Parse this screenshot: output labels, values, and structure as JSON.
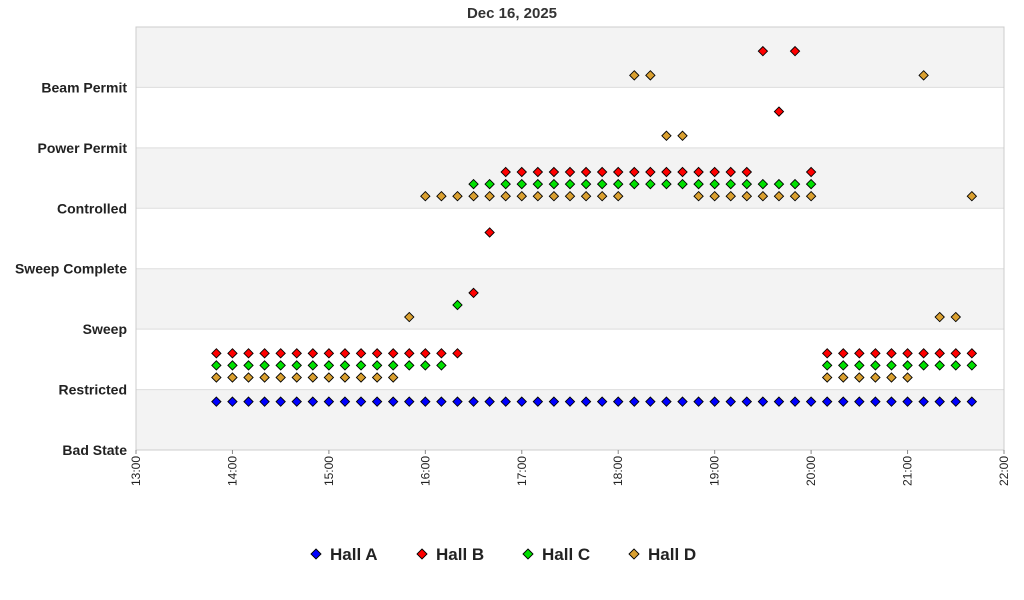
{
  "chart_data": {
    "type": "scatter",
    "title": "Dec 16, 2025",
    "xlabel": "",
    "ylabel": "",
    "x_ticks": [
      "13:00",
      "14:00",
      "15:00",
      "16:00",
      "17:00",
      "18:00",
      "19:00",
      "20:00",
      "21:00",
      "22:00"
    ],
    "xlim": [
      "13:00",
      "22:00"
    ],
    "y_categories": [
      "Bad State",
      "Restricted",
      "Sweep",
      "Sweep Complete",
      "Controlled",
      "Power Permit",
      "Beam Permit"
    ],
    "grid": true,
    "legend_position": "bottom",
    "series": [
      {
        "name": "Hall A",
        "color": "#0000ff",
        "points": [
          [
            "13:50",
            0.8
          ],
          [
            "14:00",
            0.8
          ],
          [
            "14:10",
            0.8
          ],
          [
            "14:20",
            0.8
          ],
          [
            "14:30",
            0.8
          ],
          [
            "14:40",
            0.8
          ],
          [
            "14:50",
            0.8
          ],
          [
            "15:00",
            0.8
          ],
          [
            "15:10",
            0.8
          ],
          [
            "15:20",
            0.8
          ],
          [
            "15:30",
            0.8
          ],
          [
            "15:40",
            0.8
          ],
          [
            "15:50",
            0.8
          ],
          [
            "16:00",
            0.8
          ],
          [
            "16:10",
            0.8
          ],
          [
            "16:20",
            0.8
          ],
          [
            "16:30",
            0.8
          ],
          [
            "16:40",
            0.8
          ],
          [
            "16:50",
            0.8
          ],
          [
            "17:00",
            0.8
          ],
          [
            "17:10",
            0.8
          ],
          [
            "17:20",
            0.8
          ],
          [
            "17:30",
            0.8
          ],
          [
            "17:40",
            0.8
          ],
          [
            "17:50",
            0.8
          ],
          [
            "18:00",
            0.8
          ],
          [
            "18:10",
            0.8
          ],
          [
            "18:20",
            0.8
          ],
          [
            "18:30",
            0.8
          ],
          [
            "18:40",
            0.8
          ],
          [
            "18:50",
            0.8
          ],
          [
            "19:00",
            0.8
          ],
          [
            "19:10",
            0.8
          ],
          [
            "19:20",
            0.8
          ],
          [
            "19:30",
            0.8
          ],
          [
            "19:40",
            0.8
          ],
          [
            "19:50",
            0.8
          ],
          [
            "20:00",
            0.8
          ],
          [
            "20:10",
            0.8
          ],
          [
            "20:20",
            0.8
          ],
          [
            "20:30",
            0.8
          ],
          [
            "20:40",
            0.8
          ],
          [
            "20:50",
            0.8
          ],
          [
            "21:00",
            0.8
          ],
          [
            "21:10",
            0.8
          ],
          [
            "21:20",
            0.8
          ],
          [
            "21:30",
            0.8
          ],
          [
            "21:40",
            0.8
          ]
        ]
      },
      {
        "name": "Hall B",
        "color": "#ff0000",
        "points": [
          [
            "13:50",
            1.6
          ],
          [
            "14:00",
            1.6
          ],
          [
            "14:10",
            1.6
          ],
          [
            "14:20",
            1.6
          ],
          [
            "14:30",
            1.6
          ],
          [
            "14:40",
            1.6
          ],
          [
            "14:50",
            1.6
          ],
          [
            "15:00",
            1.6
          ],
          [
            "15:10",
            1.6
          ],
          [
            "15:20",
            1.6
          ],
          [
            "15:30",
            1.6
          ],
          [
            "15:40",
            1.6
          ],
          [
            "15:50",
            1.6
          ],
          [
            "16:00",
            1.6
          ],
          [
            "16:10",
            1.6
          ],
          [
            "16:20",
            1.6
          ],
          [
            "16:30",
            2.6
          ],
          [
            "16:40",
            3.6
          ],
          [
            "16:50",
            4.6
          ],
          [
            "17:00",
            4.6
          ],
          [
            "17:10",
            4.6
          ],
          [
            "17:20",
            4.6
          ],
          [
            "17:30",
            4.6
          ],
          [
            "17:40",
            4.6
          ],
          [
            "17:50",
            4.6
          ],
          [
            "18:00",
            4.6
          ],
          [
            "18:10",
            4.6
          ],
          [
            "18:20",
            4.6
          ],
          [
            "18:30",
            4.6
          ],
          [
            "18:40",
            4.6
          ],
          [
            "18:50",
            4.6
          ],
          [
            "19:00",
            4.6
          ],
          [
            "19:10",
            4.6
          ],
          [
            "19:20",
            4.6
          ],
          [
            "19:30",
            6.6
          ],
          [
            "19:40",
            5.6
          ],
          [
            "19:50",
            6.6
          ],
          [
            "20:00",
            4.6
          ],
          [
            "20:10",
            1.6
          ],
          [
            "20:20",
            1.6
          ],
          [
            "20:30",
            1.6
          ],
          [
            "20:40",
            1.6
          ],
          [
            "20:50",
            1.6
          ],
          [
            "21:00",
            1.6
          ],
          [
            "21:10",
            1.6
          ],
          [
            "21:20",
            1.6
          ],
          [
            "21:30",
            1.6
          ],
          [
            "21:40",
            1.6
          ]
        ]
      },
      {
        "name": "Hall C",
        "color": "#00e000",
        "points": [
          [
            "13:50",
            1.4
          ],
          [
            "14:00",
            1.4
          ],
          [
            "14:10",
            1.4
          ],
          [
            "14:20",
            1.4
          ],
          [
            "14:30",
            1.4
          ],
          [
            "14:40",
            1.4
          ],
          [
            "14:50",
            1.4
          ],
          [
            "15:00",
            1.4
          ],
          [
            "15:10",
            1.4
          ],
          [
            "15:20",
            1.4
          ],
          [
            "15:30",
            1.4
          ],
          [
            "15:40",
            1.4
          ],
          [
            "15:50",
            1.4
          ],
          [
            "16:00",
            1.4
          ],
          [
            "16:10",
            1.4
          ],
          [
            "16:20",
            2.4
          ],
          [
            "16:30",
            4.4
          ],
          [
            "16:40",
            4.4
          ],
          [
            "16:50",
            4.4
          ],
          [
            "17:00",
            4.4
          ],
          [
            "17:10",
            4.4
          ],
          [
            "17:20",
            4.4
          ],
          [
            "17:30",
            4.4
          ],
          [
            "17:40",
            4.4
          ],
          [
            "17:50",
            4.4
          ],
          [
            "18:00",
            4.4
          ],
          [
            "18:10",
            4.4
          ],
          [
            "18:20",
            4.4
          ],
          [
            "18:30",
            4.4
          ],
          [
            "18:40",
            4.4
          ],
          [
            "18:50",
            4.4
          ],
          [
            "19:00",
            4.4
          ],
          [
            "19:10",
            4.4
          ],
          [
            "19:20",
            4.4
          ],
          [
            "19:30",
            4.4
          ],
          [
            "19:40",
            4.4
          ],
          [
            "19:50",
            4.4
          ],
          [
            "20:00",
            4.4
          ],
          [
            "20:10",
            1.4
          ],
          [
            "20:20",
            1.4
          ],
          [
            "20:30",
            1.4
          ],
          [
            "20:40",
            1.4
          ],
          [
            "20:50",
            1.4
          ],
          [
            "21:00",
            1.4
          ],
          [
            "21:10",
            1.4
          ],
          [
            "21:20",
            1.4
          ],
          [
            "21:30",
            1.4
          ],
          [
            "21:40",
            1.4
          ]
        ]
      },
      {
        "name": "Hall D",
        "color": "#daa030",
        "points": [
          [
            "13:50",
            1.2
          ],
          [
            "14:00",
            1.2
          ],
          [
            "14:10",
            1.2
          ],
          [
            "14:20",
            1.2
          ],
          [
            "14:30",
            1.2
          ],
          [
            "14:40",
            1.2
          ],
          [
            "14:50",
            1.2
          ],
          [
            "15:00",
            1.2
          ],
          [
            "15:10",
            1.2
          ],
          [
            "15:20",
            1.2
          ],
          [
            "15:30",
            1.2
          ],
          [
            "15:40",
            1.2
          ],
          [
            "15:50",
            2.2
          ],
          [
            "16:00",
            4.2
          ],
          [
            "16:10",
            4.2
          ],
          [
            "16:20",
            4.2
          ],
          [
            "16:30",
            4.2
          ],
          [
            "16:40",
            4.2
          ],
          [
            "16:50",
            4.2
          ],
          [
            "17:00",
            4.2
          ],
          [
            "17:10",
            4.2
          ],
          [
            "17:20",
            4.2
          ],
          [
            "17:30",
            4.2
          ],
          [
            "17:40",
            4.2
          ],
          [
            "17:50",
            4.2
          ],
          [
            "18:00",
            4.2
          ],
          [
            "18:10",
            6.2
          ],
          [
            "18:20",
            6.2
          ],
          [
            "18:30",
            5.2
          ],
          [
            "18:40",
            5.2
          ],
          [
            "18:50",
            4.2
          ],
          [
            "19:00",
            4.2
          ],
          [
            "19:10",
            4.2
          ],
          [
            "19:20",
            4.2
          ],
          [
            "19:30",
            4.2
          ],
          [
            "19:40",
            4.2
          ],
          [
            "19:50",
            4.2
          ],
          [
            "20:00",
            4.2
          ],
          [
            "20:10",
            1.2
          ],
          [
            "20:20",
            1.2
          ],
          [
            "20:30",
            1.2
          ],
          [
            "20:40",
            1.2
          ],
          [
            "20:50",
            1.2
          ],
          [
            "21:00",
            1.2
          ],
          [
            "21:10",
            6.2
          ],
          [
            "21:20",
            2.2
          ],
          [
            "21:30",
            2.2
          ],
          [
            "21:40",
            4.2
          ]
        ]
      }
    ]
  }
}
